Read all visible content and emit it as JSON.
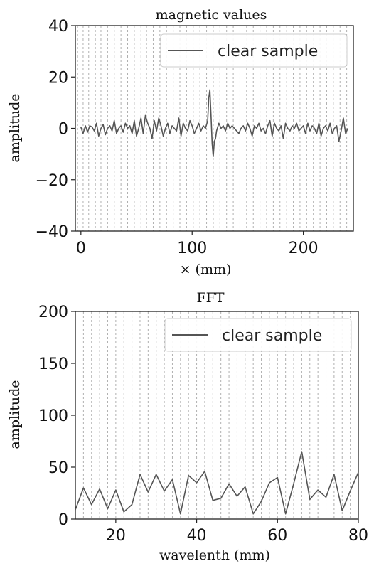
{
  "chart_data": [
    {
      "type": "line",
      "title": "magnetic values",
      "xlabel": "× (mm)",
      "ylabel": "amplitude",
      "xlim": [
        -5,
        245
      ],
      "ylim": [
        -40,
        40
      ],
      "x_ticks": [
        0,
        100,
        200
      ],
      "x_tick_labels": [
        "0",
        "100",
        "200"
      ],
      "y_ticks": [
        -40,
        -20,
        0,
        20,
        40
      ],
      "y_tick_labels": [
        "−40",
        "−20",
        "0",
        "20",
        "40"
      ],
      "grid": "vertical dashed",
      "grid_x": [
        -3,
        2,
        7,
        13,
        18,
        24,
        30,
        36,
        42,
        48,
        54,
        59,
        65,
        71,
        77,
        83,
        89,
        95,
        101,
        107,
        113,
        119,
        125,
        131,
        137,
        143,
        149,
        155,
        161,
        167,
        173,
        179,
        185,
        191,
        197,
        203,
        209,
        215,
        221,
        227,
        233,
        239
      ],
      "legend": {
        "position": "top-right",
        "entries": [
          "clear sample"
        ]
      },
      "series": [
        {
          "name": "clear sample",
          "color": "#555555",
          "x": [
            0,
            2,
            4,
            6,
            8,
            10,
            12,
            14,
            16,
            18,
            20,
            22,
            24,
            26,
            28,
            30,
            32,
            34,
            36,
            38,
            40,
            42,
            44,
            46,
            48,
            50,
            52,
            54,
            56,
            58,
            60,
            62,
            64,
            66,
            68,
            70,
            72,
            74,
            76,
            78,
            80,
            82,
            84,
            86,
            88,
            90,
            92,
            94,
            96,
            98,
            100,
            102,
            104,
            106,
            108,
            110,
            112,
            114,
            115,
            116,
            117,
            118,
            119,
            120,
            121,
            122,
            124,
            126,
            128,
            130,
            132,
            134,
            136,
            138,
            140,
            142,
            144,
            146,
            148,
            150,
            152,
            154,
            156,
            158,
            160,
            162,
            164,
            166,
            168,
            170,
            172,
            174,
            176,
            178,
            180,
            182,
            184,
            186,
            188,
            190,
            192,
            194,
            196,
            198,
            200,
            202,
            204,
            206,
            208,
            210,
            212,
            214,
            216,
            218,
            220,
            222,
            224,
            226,
            228,
            230,
            232,
            234,
            236,
            238,
            240
          ],
          "values": [
            0.5,
            -2,
            1,
            -1.5,
            1,
            0.5,
            -1,
            2,
            -3,
            0,
            1.5,
            -2.5,
            0,
            1,
            -1,
            3,
            -2,
            0,
            1,
            -1.5,
            2,
            0,
            1,
            -2,
            3,
            -3,
            0,
            4,
            -2,
            5,
            2,
            0,
            -4,
            3,
            -1,
            4,
            1,
            -3,
            0,
            2,
            -2,
            1,
            0,
            -1,
            4,
            -3,
            2,
            0,
            -1,
            3,
            1,
            -2,
            0,
            2,
            -1,
            1,
            0,
            3,
            12,
            15,
            5,
            -6,
            -11,
            -5,
            -4,
            -1,
            2,
            0,
            1,
            -1,
            2,
            0,
            1,
            0,
            -1,
            -2,
            0,
            1,
            -1,
            2,
            0,
            -3,
            1,
            0,
            2,
            -1,
            0,
            -2,
            1,
            3,
            -3,
            2,
            0,
            -1,
            1,
            -4,
            2,
            0,
            -1,
            1,
            0,
            2,
            -1,
            0,
            1,
            -2,
            2,
            -1,
            1,
            0,
            -2,
            2,
            -3,
            0,
            1,
            -1,
            2,
            -2,
            0,
            1,
            -5,
            -1,
            4,
            -2,
            0
          ]
        }
      ]
    },
    {
      "type": "line",
      "title": "FFT",
      "xlabel": "wavelenth (mm)",
      "ylabel": "amplitude",
      "xlim": [
        10,
        80
      ],
      "ylim": [
        0,
        200
      ],
      "x_ticks": [
        20,
        40,
        60,
        80
      ],
      "x_tick_labels": [
        "20",
        "40",
        "60",
        "80"
      ],
      "y_ticks": [
        0,
        50,
        100,
        150,
        200
      ],
      "y_tick_labels": [
        "0",
        "50",
        "100",
        "150",
        "200"
      ],
      "grid": "vertical dashed",
      "grid_x": [
        12,
        14,
        16,
        18,
        20,
        22,
        24,
        26,
        28,
        30,
        32,
        34,
        36,
        38,
        40,
        42,
        44,
        46,
        48,
        50,
        52,
        54,
        56,
        58,
        60,
        62,
        64,
        66,
        68,
        70,
        72,
        74,
        76,
        78
      ],
      "legend": {
        "position": "top-right",
        "entries": [
          "clear sample"
        ]
      },
      "series": [
        {
          "name": "clear sample",
          "color": "#555555",
          "x": [
            10,
            12,
            14,
            16,
            18,
            20,
            22,
            24,
            26,
            28,
            30,
            32,
            34,
            36,
            38,
            40,
            42,
            44,
            46,
            48,
            50,
            52,
            54,
            56,
            58,
            60,
            62,
            64,
            66,
            68,
            70,
            72,
            74,
            76,
            78,
            80
          ],
          "values": [
            9,
            30,
            14,
            29,
            10,
            28,
            7,
            14,
            43,
            26,
            43,
            27,
            38,
            5,
            42,
            35,
            46,
            18,
            20,
            34,
            22,
            31,
            5,
            17,
            35,
            40,
            5,
            34,
            65,
            19,
            28,
            21,
            43,
            8,
            27,
            45
          ]
        }
      ]
    }
  ]
}
